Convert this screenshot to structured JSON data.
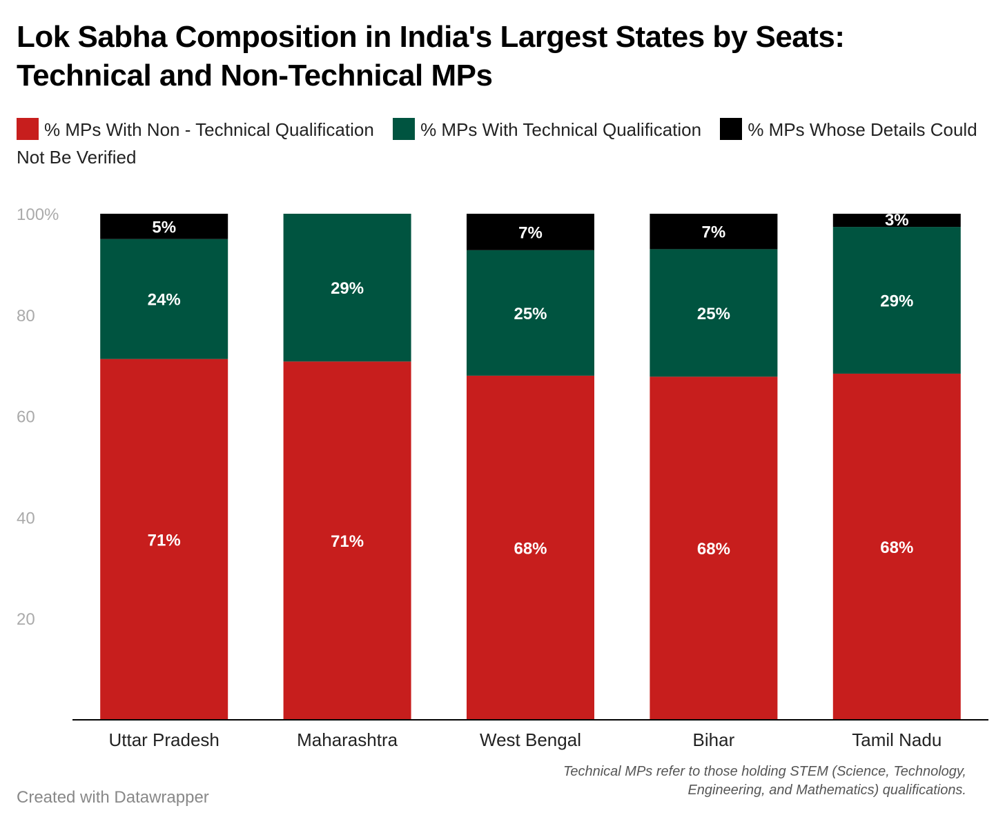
{
  "chart_data": {
    "type": "bar",
    "stacked": true,
    "title": "Lok Sabha Composition in India's Largest States by Seats: Technical and Non-Technical MPs",
    "categories": [
      "Uttar Pradesh",
      "Maharashtra",
      "West Bengal",
      "Bihar",
      "Tamil Nadu"
    ],
    "series": [
      {
        "name": "% MPs With Non - Technical Qualification",
        "color": "#c71e1d",
        "values": [
          71.3,
          70.8,
          68,
          67.8,
          68.4
        ],
        "labels": [
          "71%",
          "71%",
          "68%",
          "68%",
          "68%"
        ]
      },
      {
        "name": "% MPs With Technical Qualification",
        "color": "#005440",
        "values": [
          23.7,
          29.2,
          24.8,
          25.2,
          29
        ],
        "labels": [
          "24%",
          "29%",
          "25%",
          "25%",
          "29%"
        ]
      },
      {
        "name": "% MPs Whose Details Could Not Be Verified",
        "color": "#000000",
        "values": [
          5,
          0,
          7.2,
          7,
          2.6
        ],
        "labels": [
          "5%",
          "",
          "7%",
          "7%",
          "3%"
        ]
      }
    ],
    "ylim": [
      0,
      100
    ],
    "yticks": [
      20,
      40,
      60,
      80,
      100
    ],
    "ytick_labels": [
      "20",
      "40",
      "60",
      "80",
      "100%"
    ],
    "xlabel": "",
    "ylabel": "",
    "legend_position": "top-left"
  },
  "note": [
    "Technical MPs refer to those holding STEM (Science, Technology,",
    "Engineering, and Mathematics) qualifications."
  ],
  "credit": "Created with Datawrapper"
}
